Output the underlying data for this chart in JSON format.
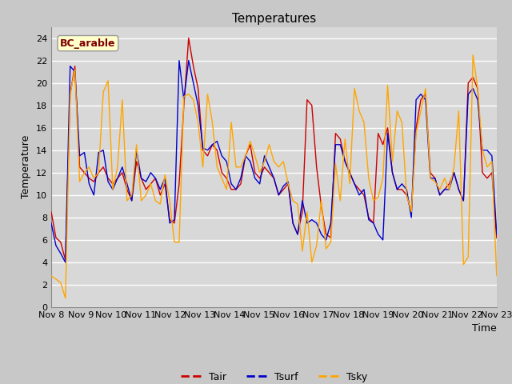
{
  "title": "Temperatures",
  "xlabel": "Time",
  "ylabel": "Temperature",
  "ylim": [
    0,
    25
  ],
  "yticks": [
    0,
    2,
    4,
    6,
    8,
    10,
    12,
    14,
    16,
    18,
    20,
    22,
    24
  ],
  "fig_bg_color": "#c8c8c8",
  "plot_bg_color": "#d8d8d8",
  "legend_label": "BC_arable",
  "legend_fg": "#800000",
  "legend_bg": "#ffffcc",
  "colors": {
    "Tair": "#cc0000",
    "Tsurf": "#0000cc",
    "Tsky": "#ffa500"
  },
  "xtick_labels": [
    "Nov 8",
    "Nov 9",
    "Nov 10",
    "Nov 11",
    "Nov 12",
    "Nov 13",
    "Nov 14",
    "Nov 15",
    "Nov 16",
    "Nov 17",
    "Nov 18",
    "Nov 19",
    "Nov 20",
    "Nov 21",
    "Nov 22",
    "Nov 23"
  ],
  "tair": [
    8.5,
    6.2,
    5.8,
    4.2,
    19.0,
    21.5,
    12.5,
    12.0,
    11.5,
    11.2,
    12.0,
    12.5,
    11.5,
    11.0,
    11.5,
    12.0,
    10.5,
    9.5,
    13.0,
    11.5,
    10.5,
    11.0,
    11.5,
    10.0,
    11.0,
    7.8,
    7.5,
    11.0,
    18.0,
    24.0,
    21.5,
    19.5,
    14.0,
    13.5,
    14.5,
    14.0,
    12.0,
    11.5,
    10.5,
    10.5,
    11.0,
    13.5,
    14.5,
    12.0,
    11.5,
    12.5,
    12.0,
    11.5,
    10.0,
    10.5,
    11.0,
    7.5,
    6.5,
    8.5,
    18.5,
    18.0,
    12.5,
    9.0,
    6.5,
    6.2,
    15.5,
    15.0,
    13.0,
    12.0,
    11.0,
    10.5,
    10.0,
    8.0,
    7.5,
    15.5,
    14.5,
    16.0,
    12.0,
    10.5,
    10.5,
    10.0,
    8.5,
    16.0,
    18.5,
    19.0,
    12.0,
    11.5,
    10.0,
    10.5,
    11.0,
    12.0,
    10.5,
    9.5,
    20.0,
    20.5,
    19.5,
    12.0,
    11.5,
    12.0,
    6.2
  ],
  "tsurf": [
    7.5,
    5.5,
    4.8,
    4.0,
    21.5,
    21.0,
    13.5,
    13.8,
    11.0,
    10.0,
    13.8,
    14.0,
    11.2,
    10.5,
    11.5,
    12.5,
    11.0,
    9.5,
    14.0,
    11.5,
    11.2,
    12.0,
    11.5,
    10.5,
    11.5,
    7.5,
    7.8,
    22.0,
    18.5,
    22.0,
    20.0,
    18.0,
    14.2,
    14.0,
    14.5,
    14.8,
    13.5,
    13.0,
    11.0,
    10.5,
    11.5,
    13.5,
    13.0,
    11.5,
    11.0,
    13.5,
    12.5,
    11.5,
    10.0,
    10.8,
    11.2,
    7.5,
    6.5,
    9.5,
    7.5,
    7.8,
    7.5,
    6.5,
    6.0,
    7.5,
    14.5,
    14.5,
    13.0,
    12.0,
    11.0,
    10.0,
    10.5,
    7.8,
    7.5,
    6.5,
    6.0,
    15.5,
    12.0,
    10.5,
    11.0,
    10.5,
    8.0,
    18.5,
    19.0,
    18.5,
    11.5,
    11.5,
    10.0,
    10.5,
    10.5,
    12.0,
    10.5,
    9.5,
    19.0,
    19.5,
    18.5,
    14.0,
    14.0,
    13.5,
    6.5
  ],
  "tsky": [
    2.8,
    2.5,
    2.2,
    0.8,
    19.0,
    21.2,
    11.2,
    12.0,
    12.5,
    11.5,
    12.0,
    19.2,
    20.2,
    10.5,
    12.5,
    18.5,
    9.5,
    10.0,
    14.5,
    9.5,
    10.0,
    11.0,
    9.5,
    9.2,
    11.8,
    9.5,
    5.8,
    5.8,
    18.8,
    19.0,
    18.5,
    16.5,
    12.5,
    19.0,
    16.5,
    12.5,
    11.5,
    10.5,
    16.5,
    12.5,
    12.5,
    13.5,
    14.8,
    13.5,
    12.0,
    13.0,
    14.5,
    13.0,
    12.5,
    13.0,
    11.0,
    9.5,
    9.2,
    5.0,
    8.5,
    4.0,
    5.5,
    9.5,
    5.2,
    5.8,
    12.8,
    9.5,
    15.0,
    11.0,
    19.5,
    17.5,
    16.5,
    11.5,
    9.5,
    9.8,
    11.5,
    19.8,
    13.0,
    17.5,
    16.5,
    10.0,
    8.5,
    15.5,
    17.5,
    19.5,
    11.5,
    11.2,
    10.5,
    11.5,
    10.5,
    12.5,
    17.5,
    3.8,
    4.5,
    22.5,
    19.5,
    14.0,
    12.5,
    13.0,
    2.8
  ]
}
